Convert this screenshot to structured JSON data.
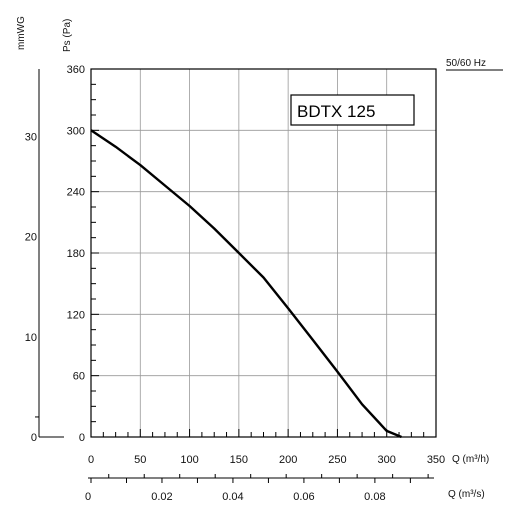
{
  "chart_data": {
    "type": "line",
    "model_label": "BDTX 125",
    "frequency_label": "50/60 Hz",
    "ylabel_ps": "Ps (Pa)",
    "ylabel_mmwg": "mmWG",
    "xlabel_m3h": "Q (m³/h)",
    "xlabel_m3s": "Q (m³/s)",
    "xlim": [
      0,
      350
    ],
    "ylim": [
      0,
      360
    ],
    "xticks": [
      0,
      50,
      100,
      150,
      200,
      250,
      300,
      350
    ],
    "yticks": [
      0,
      60,
      120,
      180,
      240,
      300,
      360
    ],
    "mmwg_ticks": [
      0,
      10,
      20,
      30
    ],
    "m3s_ticks": [
      "0",
      "0.02",
      "0.04",
      "0.06",
      "0.08"
    ],
    "m3s_tick_values": [
      0,
      0.02,
      0.04,
      0.06,
      0.08
    ],
    "grid": true,
    "series": [
      {
        "x": [
          0,
          25,
          50,
          75,
          100,
          125,
          150,
          175,
          200,
          225,
          250,
          275,
          300,
          315
        ],
        "y": [
          300,
          284,
          266,
          246,
          226,
          204,
          180,
          156,
          126,
          95,
          64,
          32,
          6,
          0
        ]
      }
    ]
  }
}
